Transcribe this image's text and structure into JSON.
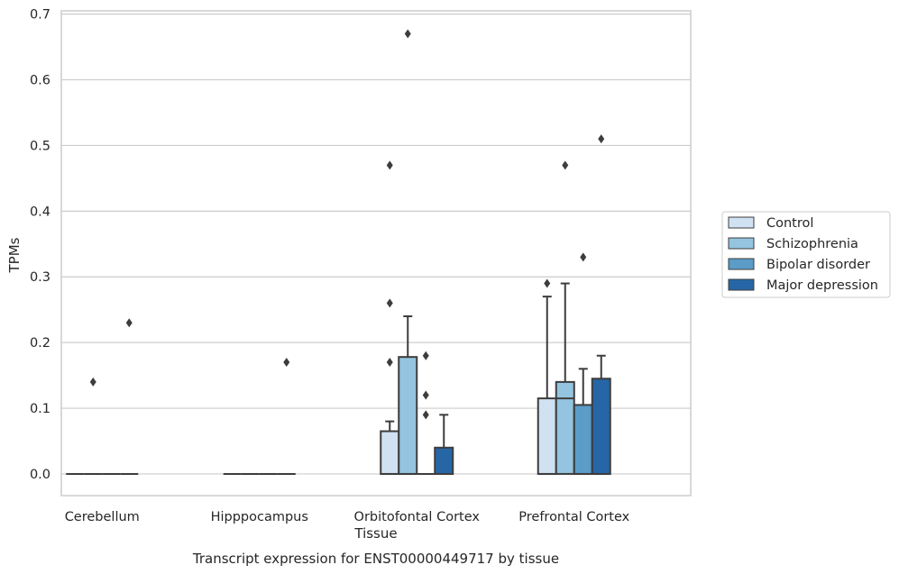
{
  "chart_data": {
    "type": "box",
    "title": "Transcript expression for ENST00000449717 by tissue",
    "xlabel": "Tissue",
    "ylabel": "TPMs",
    "ylim": [
      -0.033,
      0.705
    ],
    "yticks": [
      0.0,
      0.1,
      0.2,
      0.3,
      0.4,
      0.5,
      0.6,
      0.7
    ],
    "ytick_labels": [
      "0.0",
      "0.1",
      "0.2",
      "0.3",
      "0.4",
      "0.5",
      "0.6",
      "0.7"
    ],
    "categories": [
      "Cerebellum",
      "Hipppocampus",
      "Orbitofontal Cortex",
      "Prefrontal Cortex"
    ],
    "grid": "horizontal",
    "legend_position": "right-outside",
    "series": [
      {
        "name": "Control",
        "color": "#d0e1f2",
        "boxes": [
          {
            "q1": 0,
            "median": 0,
            "q3": 0,
            "whisker_low": 0,
            "whisker_high": 0,
            "outliers": []
          },
          {
            "q1": 0,
            "median": 0,
            "q3": 0,
            "whisker_low": 0,
            "whisker_high": 0,
            "outliers": []
          },
          {
            "q1": 0,
            "median": 0,
            "q3": 0.065,
            "whisker_low": 0,
            "whisker_high": 0.08,
            "outliers": [
              0.17,
              0.26,
              0.47
            ]
          },
          {
            "q1": 0,
            "median": 0,
            "q3": 0.115,
            "whisker_low": 0,
            "whisker_high": 0.27,
            "outliers": [
              0.29
            ]
          }
        ]
      },
      {
        "name": "Schizophrenia",
        "color": "#94c4df",
        "boxes": [
          {
            "q1": 0,
            "median": 0,
            "q3": 0,
            "whisker_low": 0,
            "whisker_high": 0,
            "outliers": [
              0.14
            ]
          },
          {
            "q1": 0,
            "median": 0,
            "q3": 0,
            "whisker_low": 0,
            "whisker_high": 0,
            "outliers": []
          },
          {
            "q1": 0,
            "median": 0,
            "q3": 0.178,
            "whisker_low": 0,
            "whisker_high": 0.24,
            "outliers": [
              0.67
            ]
          },
          {
            "q1": 0,
            "median": 0.115,
            "q3": 0.14,
            "whisker_low": 0,
            "whisker_high": 0.29,
            "outliers": [
              0.47
            ]
          }
        ]
      },
      {
        "name": "Bipolar disorder",
        "color": "#5b9cc8",
        "boxes": [
          {
            "q1": 0,
            "median": 0,
            "q3": 0,
            "whisker_low": 0,
            "whisker_high": 0,
            "outliers": []
          },
          {
            "q1": 0,
            "median": 0,
            "q3": 0,
            "whisker_low": 0,
            "whisker_high": 0,
            "outliers": []
          },
          {
            "q1": 0,
            "median": 0,
            "q3": 0,
            "whisker_low": 0,
            "whisker_high": 0,
            "outliers": [
              0.09,
              0.12,
              0.18
            ]
          },
          {
            "q1": 0,
            "median": 0,
            "q3": 0.105,
            "whisker_low": 0,
            "whisker_high": 0.16,
            "outliers": [
              0.33
            ]
          }
        ]
      },
      {
        "name": "Major depression",
        "color": "#2666a6",
        "boxes": [
          {
            "q1": 0,
            "median": 0,
            "q3": 0,
            "whisker_low": 0,
            "whisker_high": 0,
            "outliers": [
              0.23
            ]
          },
          {
            "q1": 0,
            "median": 0,
            "q3": 0,
            "whisker_low": 0,
            "whisker_high": 0,
            "outliers": [
              0.17
            ]
          },
          {
            "q1": 0,
            "median": 0,
            "q3": 0.04,
            "whisker_low": 0,
            "whisker_high": 0.09,
            "outliers": []
          },
          {
            "q1": 0,
            "median": 0,
            "q3": 0.145,
            "whisker_low": 0,
            "whisker_high": 0.18,
            "outliers": [
              0.51
            ]
          }
        ]
      }
    ]
  }
}
